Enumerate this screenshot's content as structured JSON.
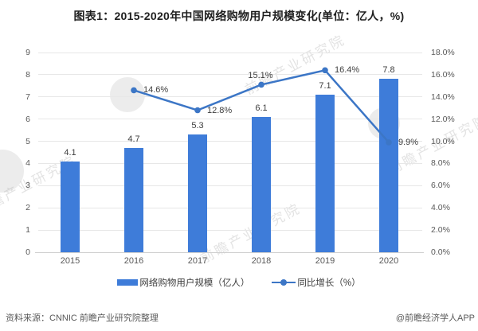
{
  "title": "图表1：2015-2020年中国网络购物用户规模变化(单位：亿人，%)",
  "chart_data": {
    "type": "bar",
    "combo": "bar+line",
    "categories": [
      "2015",
      "2016",
      "2017",
      "2018",
      "2019",
      "2020"
    ],
    "series": [
      {
        "name": "网络购物用户规模（亿人）",
        "type": "bar",
        "axis": "left",
        "color": "#3E7CD9",
        "values": [
          4.1,
          4.7,
          5.3,
          6.1,
          7.1,
          7.8
        ],
        "data_labels": [
          "4.1",
          "4.7",
          "5.3",
          "6.1",
          "7.1",
          "7.8"
        ]
      },
      {
        "name": "同比增长（%）",
        "type": "line",
        "axis": "right",
        "color": "#3C76C6",
        "values": [
          null,
          14.6,
          12.8,
          15.1,
          16.4,
          9.9
        ],
        "data_labels": [
          "",
          "14.6%",
          "12.8%",
          "15.1%",
          "16.4%",
          "9.9%"
        ],
        "label_side": [
          "",
          "right",
          "right",
          "above",
          "right",
          "right"
        ]
      }
    ],
    "left_axis": {
      "min": 0,
      "max": 9,
      "step": 1,
      "ticks": [
        "0",
        "1",
        "2",
        "3",
        "4",
        "5",
        "6",
        "7",
        "8",
        "9"
      ]
    },
    "right_axis": {
      "min": 0,
      "max": 18,
      "step": 2,
      "ticks": [
        "0.0%",
        "2.0%",
        "4.0%",
        "6.0%",
        "8.0%",
        "10.0%",
        "12.0%",
        "14.0%",
        "16.0%",
        "18.0%"
      ]
    },
    "grid": true,
    "legend_position": "bottom"
  },
  "legend": [
    {
      "label": "网络购物用户规模（亿人）",
      "marker": "bar-swatch"
    },
    {
      "label": "同比增长（%）",
      "marker": "line-swatch"
    }
  ],
  "watermark": {
    "text": "前瞻产业研究院"
  },
  "footer": {
    "source": "资料来源：CNNIC 前瞻产业研究院整理",
    "credit": "@前瞻经济学人APP"
  }
}
